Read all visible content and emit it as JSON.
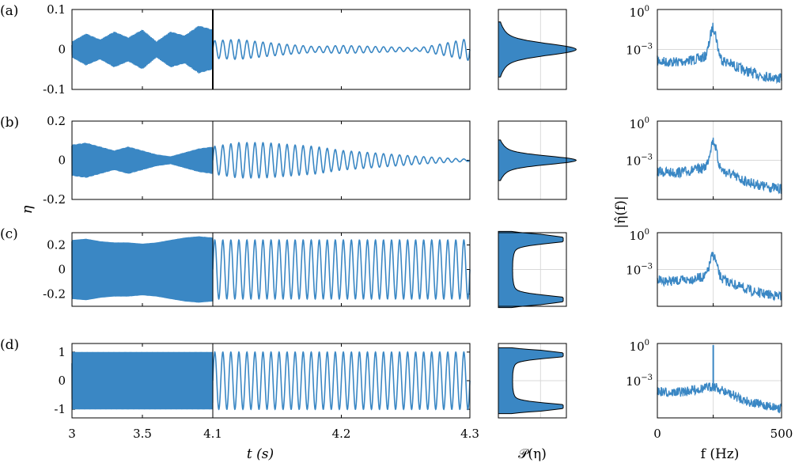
{
  "colors": {
    "signal": "#3a87c4",
    "axis": "#000000",
    "grid": "#d9d9d9"
  },
  "labels": {
    "panels": [
      "(a)",
      "(b)",
      "(c)",
      "(d)"
    ],
    "time_ylabel": "η",
    "time_xlabel": "t (s)",
    "pdf_xlabel": "𝒫(η)",
    "spec_ylabel": "|η̂(f)|",
    "spec_xlabel": "f (Hz)"
  },
  "chart_data": [
    {
      "type": "line",
      "name": "time_series",
      "xlabel": "t (s)",
      "ylabel": "η",
      "x_ticks_left": [
        "3",
        "3.5",
        "4.1"
      ],
      "x_ticks_right": [
        "4.1",
        "4.2",
        "4.3"
      ],
      "panels": [
        {
          "label": "(a)",
          "ylim": [
            -0.1,
            0.1
          ],
          "yticks": [
            "0.1",
            "0",
            "-0.1"
          ],
          "left_env": [
            0.02,
            0.04,
            0.025,
            0.045,
            0.03,
            0.05,
            0.02,
            0.045,
            0.035,
            0.06,
            0.05
          ],
          "right_amp": [
            0.022,
            0.025,
            0.018,
            0.012,
            0.007,
            0.01,
            0.008,
            0.006,
            0.004,
            0.015,
            0.028
          ]
        },
        {
          "label": "(b)",
          "ylim": [
            -0.2,
            0.2
          ],
          "yticks": [
            "0.2",
            "0",
            "-0.2"
          ],
          "left_env": [
            0.08,
            0.09,
            0.07,
            0.05,
            0.07,
            0.05,
            0.03,
            0.02,
            0.04,
            0.06,
            0.07
          ],
          "right_amp": [
            0.07,
            0.09,
            0.09,
            0.08,
            0.07,
            0.05,
            0.04,
            0.03,
            0.02,
            0.012,
            0.005
          ]
        },
        {
          "label": "(c)",
          "ylim": [
            -0.3,
            0.3
          ],
          "yticks": [
            "0.2",
            "0",
            "-0.2"
          ],
          "left_env": [
            0.24,
            0.25,
            0.23,
            0.22,
            0.22,
            0.21,
            0.22,
            0.24,
            0.26,
            0.27,
            0.26
          ],
          "right_amp": [
            0.24,
            0.24,
            0.24,
            0.24,
            0.24,
            0.24,
            0.24,
            0.24,
            0.24,
            0.24,
            0.24
          ]
        },
        {
          "label": "(d)",
          "ylim": [
            -1.3,
            1.3
          ],
          "yticks": [
            "1",
            "0",
            "-1"
          ],
          "left_env": [
            1,
            1,
            1,
            1,
            1,
            1,
            1,
            1,
            1,
            1,
            1
          ],
          "right_amp": [
            1,
            1,
            1,
            1,
            1,
            1,
            1,
            1,
            1,
            1,
            1
          ]
        }
      ]
    },
    {
      "type": "area",
      "name": "probability_density",
      "xlabel": "𝒫(η)",
      "shape_per_panel": [
        "single-peak",
        "single-peak",
        "bimodal",
        "bimodal"
      ]
    },
    {
      "type": "line",
      "name": "spectrum",
      "xlabel": "f (Hz)",
      "ylabel": "|η̂(f)|",
      "xlim": [
        0,
        500
      ],
      "x_ticks": [
        "0",
        "",
        "500"
      ],
      "ytick_top": "10",
      "ytick_top_exp": "0",
      "ytick_mid": "10",
      "ytick_mid_exp": "−3",
      "y_log": true,
      "peak_hz": 225
    }
  ]
}
